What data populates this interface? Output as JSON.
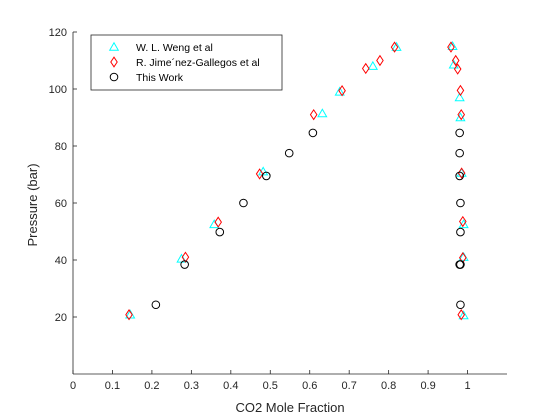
{
  "chart_data": {
    "type": "scatter",
    "title": "",
    "xlabel": "CO2 Mole Fraction",
    "ylabel": "Pressure (bar)",
    "xlim": [
      0,
      1.1
    ],
    "ylim": [
      0,
      120
    ],
    "xticks": [
      0,
      0.1,
      0.2,
      0.3,
      0.4,
      0.5,
      0.6,
      0.7,
      0.8,
      0.9,
      1
    ],
    "xtick_labels": [
      "0",
      "0.1",
      "0.2",
      "0.3",
      "0.4",
      "0.5",
      "0.6",
      "0.7",
      "0.8",
      "0.9",
      "1"
    ],
    "yticks": [
      20,
      40,
      60,
      80,
      100,
      120
    ],
    "ytick_labels": [
      "20",
      "40",
      "60",
      "80",
      "100",
      "120"
    ],
    "grid": false,
    "legend_position": "top-left",
    "series": [
      {
        "name": "W. L. Weng et al",
        "marker": "triangle",
        "color": "#00FFFF",
        "x": [
          0.145,
          0.275,
          0.358,
          0.482,
          0.632,
          0.676,
          0.76,
          0.82,
          0.962,
          0.965,
          0.98,
          0.982,
          0.985,
          0.99,
          0.99,
          0.99
        ],
        "y": [
          20.8,
          40.4,
          52.5,
          71.0,
          91.4,
          99.0,
          108.0,
          114.7,
          115.0,
          108.5,
          97.0,
          90.0,
          70.5,
          52.5,
          41.0,
          20.5
        ]
      },
      {
        "name": "R. Jime´nez-Gallegos et al",
        "marker": "diamond",
        "color": "#FF0000",
        "x": [
          0.142,
          0.285,
          0.368,
          0.473,
          0.61,
          0.682,
          0.742,
          0.778,
          0.815,
          0.958,
          0.97,
          0.975,
          0.982,
          0.984,
          0.985,
          0.988,
          0.988,
          0.984
        ],
        "y": [
          20.8,
          41.0,
          53.3,
          70.2,
          91.0,
          99.4,
          107.2,
          110.0,
          114.7,
          114.7,
          110.0,
          107.0,
          99.5,
          91.0,
          70.5,
          53.5,
          40.8,
          20.8
        ]
      },
      {
        "name": "This Work",
        "marker": "circle",
        "color": "#000000",
        "x": [
          0.21,
          0.283,
          0.372,
          0.432,
          0.49,
          0.548,
          0.608,
          0.98,
          0.98,
          0.98,
          0.982,
          0.982,
          0.98,
          0.982,
          0.982
        ],
        "y": [
          24.3,
          38.4,
          49.8,
          60.0,
          69.5,
          77.5,
          84.6,
          84.6,
          77.5,
          69.5,
          60.0,
          49.8,
          38.4,
          24.3,
          38.4
        ]
      }
    ]
  }
}
